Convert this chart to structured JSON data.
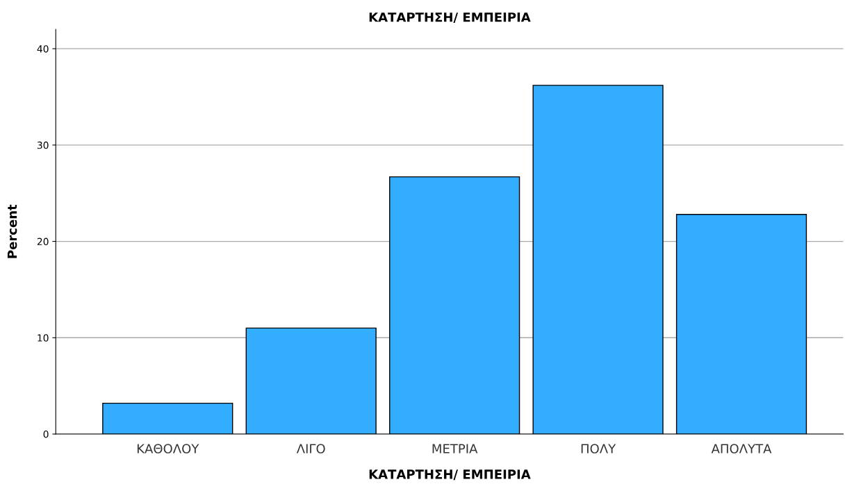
{
  "chart_data": {
    "type": "bar",
    "title": "ΚΑΤΑΡΤΗΣΗ/ ΕΜΠΕΙΡΙΑ",
    "xlabel": "ΚΑΤΑΡΤΗΣΗ/ ΕΜΠΕΙΡΙΑ",
    "ylabel": "Percent",
    "categories": [
      "ΚΑΘΟΛΟΥ",
      "ΛΙΓΟ",
      "ΜΕΤΡΙΑ",
      "ΠΟΛΥ",
      "ΑΠΟΛΥΤΑ"
    ],
    "values": [
      3.2,
      11.0,
      26.7,
      36.2,
      22.8
    ],
    "color": "#33adff",
    "ylim": [
      0,
      42
    ],
    "yticks": [
      0,
      10,
      20,
      30,
      40
    ],
    "grid": "y"
  }
}
